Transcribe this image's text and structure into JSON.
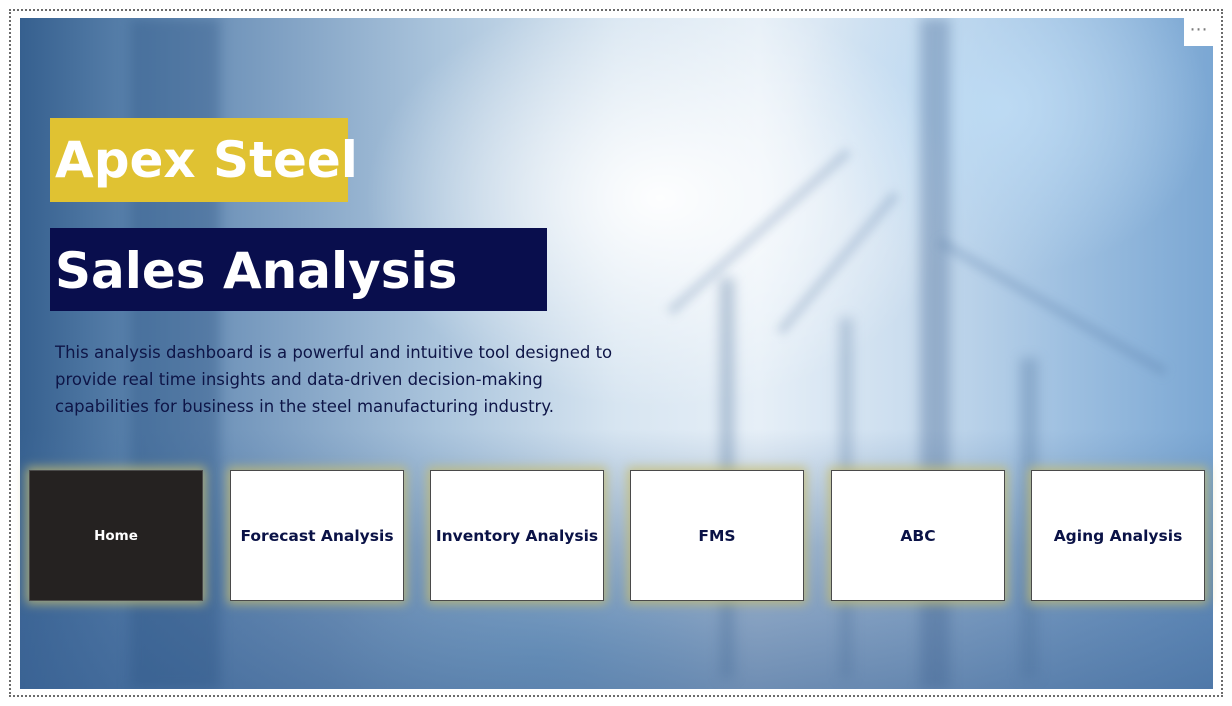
{
  "header": {
    "title": "Apex Steel",
    "subtitle": "Sales Analysis",
    "description_lines": [
      "This analysis dashboard is a powerful and intuitive tool designed to",
      "provide real time insights and data-driven decision-making",
      "capabilities for business in the steel manufacturing industry."
    ]
  },
  "visual_menu": {
    "icon": "more-options-icon",
    "label": "⋯"
  },
  "nav": {
    "buttons": [
      {
        "label": "Home",
        "active": true
      },
      {
        "label": "Forecast Analysis",
        "active": false
      },
      {
        "label": "Inventory Analysis",
        "active": false
      },
      {
        "label": "FMS",
        "active": false
      },
      {
        "label": "ABC",
        "active": false
      },
      {
        "label": "Aging Analysis",
        "active": false
      }
    ]
  },
  "colors": {
    "title_bg": "#e0c232",
    "subtitle_bg": "#090e4d",
    "active_button_bg": "#252221",
    "button_text": "#0a1246"
  }
}
